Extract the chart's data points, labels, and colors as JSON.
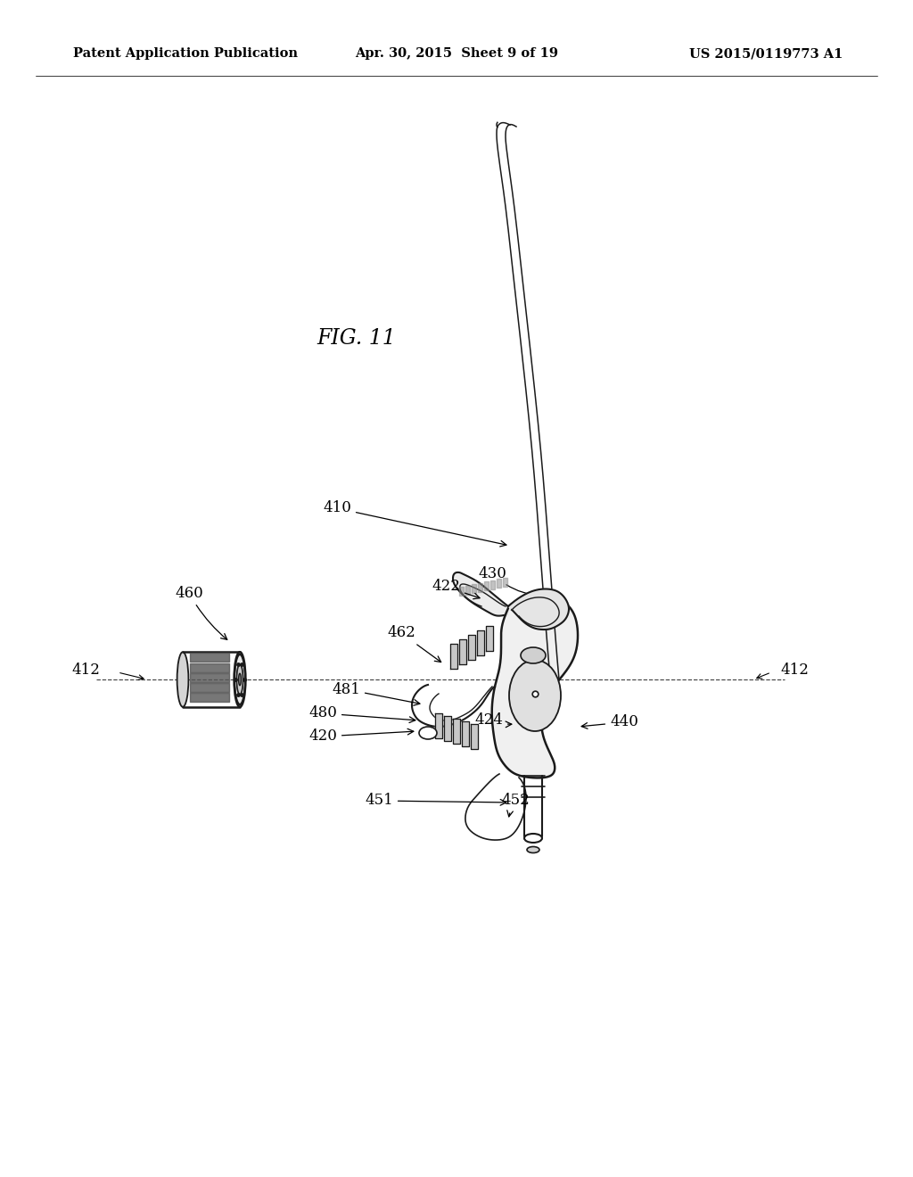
{
  "title_left": "Patent Application Publication",
  "title_center": "Apr. 30, 2015  Sheet 9 of 19",
  "title_right": "US 2015/0119773 A1",
  "fig_label": "FIG. 11",
  "background_color": "#ffffff",
  "line_color": "#1a1a1a",
  "header_fontsize": 10.5,
  "fig_label_fontsize": 17,
  "ref_fontsize": 12
}
